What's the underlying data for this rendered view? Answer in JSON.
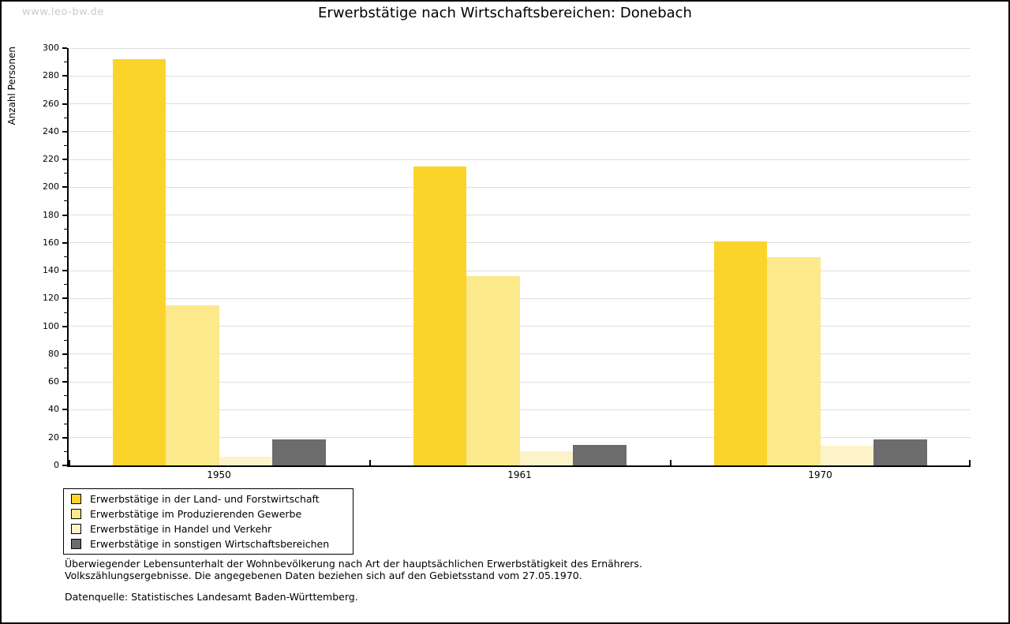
{
  "watermark": "www.leo-bw.de",
  "header": {
    "title": "Erwerbstätige nach Wirtschaftsbereichen: Donebach"
  },
  "chart_data": {
    "type": "bar",
    "title": "Erwerbstätige nach Wirtschaftsbereichen: Donebach",
    "xlabel": "",
    "ylabel": "Anzahl Personen",
    "categories": [
      "1950",
      "1961",
      "1970"
    ],
    "series": [
      {
        "name": "Erwerbstätige in der Land- und Forstwirtschaft",
        "color": "#FCD32B",
        "values": [
          292,
          215,
          161
        ]
      },
      {
        "name": "Erwerbstätige im Produzierenden Gewerbe",
        "color": "#FCE98C",
        "values": [
          115,
          136,
          150
        ]
      },
      {
        "name": "Erwerbstätige in Handel und Verkehr",
        "color": "#FCF3C9",
        "values": [
          6,
          10,
          14
        ]
      },
      {
        "name": "Erwerbstätige in sonstigen Wirtschaftsbereichen",
        "color": "#6C6C6C",
        "values": [
          19,
          15,
          19
        ]
      }
    ],
    "ylim": [
      0,
      300
    ],
    "ytick_step": 20,
    "ytick_minor": 10,
    "grid": true,
    "legend_position": "bottom-left"
  },
  "footnotes": [
    "Überwiegender Lebensunterhalt der Wohnbevölkerung nach Art der hauptsächlichen Erwerbstätigkeit des Ernährers.",
    "Volkszählungsergebnisse. Die angegebenen Daten beziehen sich auf den Gebietsstand vom 27.05.1970."
  ],
  "source": "Datenquelle: Statistisches Landesamt Baden-Württemberg.",
  "colors": {
    "grid": "#DEDEDE",
    "axis": "#000000",
    "watermark": "#CCCCCC",
    "text": "#000000"
  }
}
